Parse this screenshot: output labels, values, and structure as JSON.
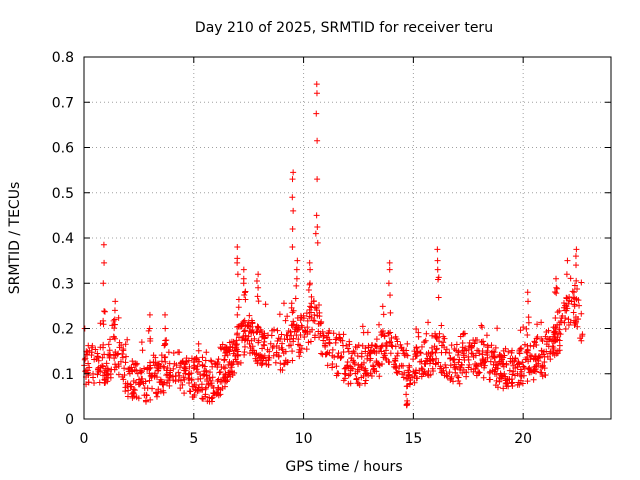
{
  "chart_data": {
    "type": "scatter",
    "title": "Day 210 of 2025, SRMTID for receiver teru",
    "xlabel": "GPS time / hours",
    "ylabel": "SRMTID / TECUs",
    "xlim": [
      0,
      24
    ],
    "ylim": [
      0,
      0.8
    ],
    "x_ticks": [
      0,
      5,
      10,
      15,
      20
    ],
    "x_tick_labels": [
      "0",
      "5",
      "10",
      "15",
      "20"
    ],
    "y_ticks": [
      0,
      0.1,
      0.2,
      0.3,
      0.4,
      0.5,
      0.6,
      0.7,
      0.8
    ],
    "y_tick_labels": [
      "0",
      "0.1",
      "0.2",
      "0.3",
      "0.4",
      "0.5",
      "0.6",
      "0.7",
      "0.8"
    ],
    "grid": true,
    "marker": "+",
    "color": "#ff0000",
    "series": [
      {
        "name": "SRMTID",
        "x_range": [
          0.0,
          22.7
        ],
        "baseline_profile": [
          [
            0.0,
            0.12
          ],
          [
            1.0,
            0.12
          ],
          [
            1.5,
            0.15
          ],
          [
            2.0,
            0.09
          ],
          [
            3.0,
            0.08
          ],
          [
            4.0,
            0.11
          ],
          [
            5.0,
            0.09
          ],
          [
            6.0,
            0.08
          ],
          [
            7.0,
            0.16
          ],
          [
            7.5,
            0.19
          ],
          [
            8.0,
            0.16
          ],
          [
            9.0,
            0.15
          ],
          [
            10.0,
            0.19
          ],
          [
            10.5,
            0.22
          ],
          [
            11.0,
            0.16
          ],
          [
            12.0,
            0.12
          ],
          [
            13.0,
            0.12
          ],
          [
            14.0,
            0.16
          ],
          [
            14.8,
            0.1
          ],
          [
            16.0,
            0.15
          ],
          [
            17.0,
            0.12
          ],
          [
            18.0,
            0.14
          ],
          [
            19.0,
            0.11
          ],
          [
            20.0,
            0.12
          ],
          [
            21.0,
            0.14
          ],
          [
            21.7,
            0.2
          ],
          [
            22.2,
            0.26
          ],
          [
            22.7,
            0.2
          ]
        ],
        "peaks": [
          {
            "x": 0.9,
            "values": [
              0.3,
              0.345,
              0.385
            ]
          },
          {
            "x": 1.4,
            "values": [
              0.22,
              0.24,
              0.26
            ]
          },
          {
            "x": 3.0,
            "values": [
              0.2,
              0.23
            ]
          },
          {
            "x": 3.7,
            "values": [
              0.2,
              0.23
            ]
          },
          {
            "x": 7.0,
            "values": [
              0.32,
              0.345,
              0.355,
              0.38
            ]
          },
          {
            "x": 7.3,
            "values": [
              0.3,
              0.31,
              0.33
            ]
          },
          {
            "x": 7.9,
            "values": [
              0.29,
              0.305,
              0.32
            ]
          },
          {
            "x": 9.5,
            "values": [
              0.38,
              0.42,
              0.46,
              0.49,
              0.53,
              0.545
            ]
          },
          {
            "x": 9.7,
            "values": [
              0.31,
              0.33,
              0.35
            ]
          },
          {
            "x": 10.3,
            "values": [
              0.3,
              0.33,
              0.345
            ]
          },
          {
            "x": 10.6,
            "values": [
              0.45,
              0.53,
              0.615,
              0.675,
              0.72,
              0.74
            ]
          },
          {
            "x": 13.9,
            "values": [
              0.3,
              0.33,
              0.345
            ]
          },
          {
            "x": 14.7,
            "values": [
              0.03,
              0.04
            ]
          },
          {
            "x": 16.1,
            "values": [
              0.33,
              0.35,
              0.375
            ]
          },
          {
            "x": 20.2,
            "values": [
              0.26,
              0.28
            ]
          },
          {
            "x": 21.5,
            "values": [
              0.29,
              0.31
            ]
          },
          {
            "x": 22.0,
            "values": [
              0.32,
              0.35
            ]
          },
          {
            "x": 22.4,
            "values": [
              0.34,
              0.36,
              0.375
            ]
          }
        ],
        "approx_point_count": 1400
      }
    ]
  }
}
